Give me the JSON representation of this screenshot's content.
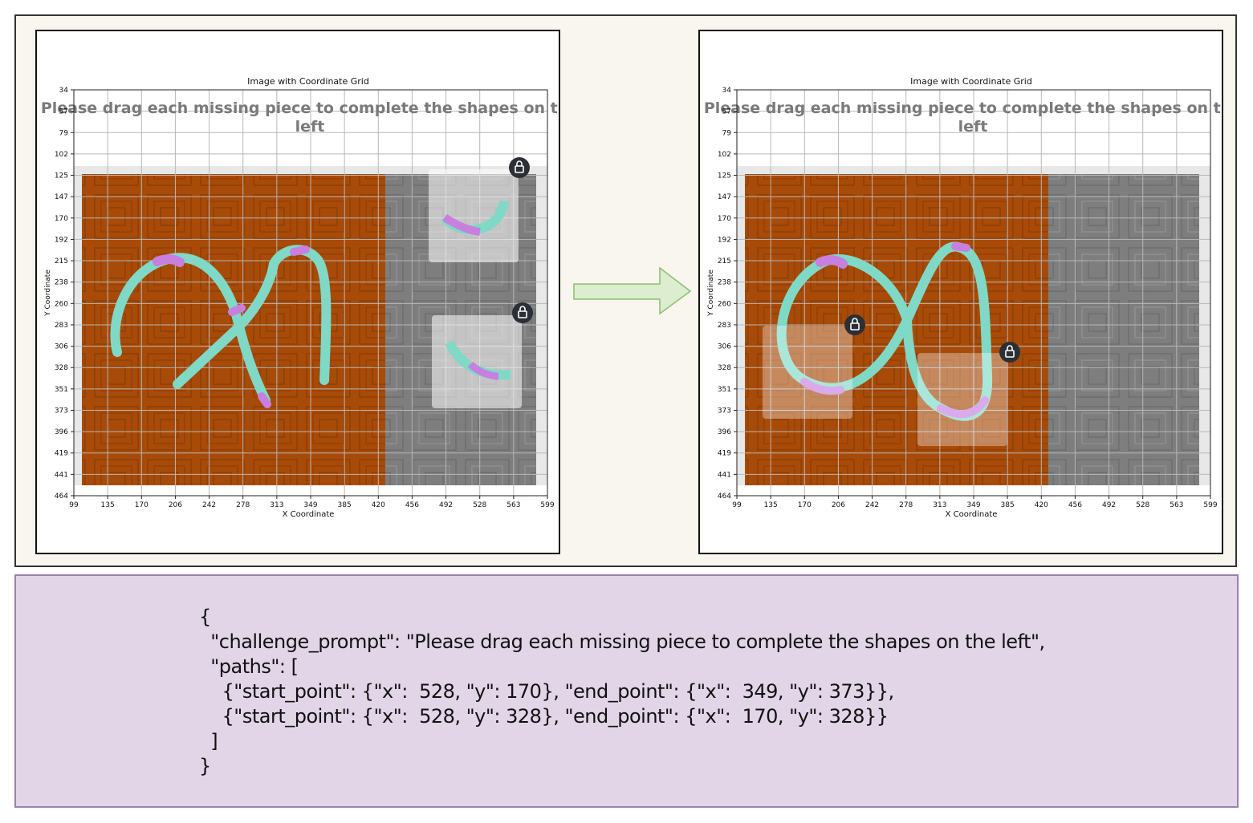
{
  "panels": [
    {
      "id": "before",
      "chart_title": "Image with Coordinate Grid",
      "xlabel": "X Coordinate",
      "ylabel": "Y Coordinate",
      "x_ticks": [
        "99",
        "135",
        "170",
        "206",
        "242",
        "278",
        "313",
        "349",
        "385",
        "420",
        "456",
        "492",
        "528",
        "563",
        "599"
      ],
      "y_ticks": [
        "34",
        "57",
        "79",
        "102",
        "125",
        "147",
        "170",
        "192",
        "215",
        "238",
        "260",
        "283",
        "306",
        "328",
        "351",
        "373",
        "396",
        "419",
        "441",
        "464"
      ],
      "challenge_text_line1": "Please drag each missing piece to complete the shapes on the",
      "challenge_text_line2": "left",
      "lock_icon": "lock-icon"
    },
    {
      "id": "after",
      "chart_title": "Image with Coordinate Grid",
      "xlabel": "X Coordinate",
      "ylabel": "Y Coordinate",
      "x_ticks": [
        "99",
        "135",
        "170",
        "206",
        "242",
        "278",
        "313",
        "349",
        "385",
        "420",
        "456",
        "492",
        "528",
        "563",
        "599"
      ],
      "y_ticks": [
        "34",
        "57",
        "79",
        "102",
        "125",
        "147",
        "170",
        "192",
        "215",
        "238",
        "260",
        "283",
        "306",
        "328",
        "351",
        "373",
        "396",
        "419",
        "441",
        "464"
      ],
      "challenge_text_line1": "Please drag each missing piece to complete the shapes on the",
      "challenge_text_line2": "left",
      "lock_icon": "lock-icon"
    }
  ],
  "arrow_icon": "right-arrow-icon",
  "colors": {
    "board_orange": "#a64a07",
    "tray_gray": "#808080",
    "stroke_teal": "#7fd9c6",
    "stroke_purple": "#c77fe0",
    "json_panel_bg": "#e2d5e8"
  },
  "json_block": {
    "line1": "{",
    "line2": "  \"challenge_prompt\": \"Please drag each missing piece to complete the shapes on the left\",",
    "line3": "  \"paths\": [",
    "line4": "    {\"start_point\": {\"x\":  528, \"y\": 170}, \"end_point\": {\"x\":  349, \"y\": 373}},",
    "line5": "    {\"start_point\": {\"x\":  528, \"y\": 328}, \"end_point\": {\"x\":  170, \"y\": 328}}",
    "line6": "  ]",
    "line7": "}"
  }
}
